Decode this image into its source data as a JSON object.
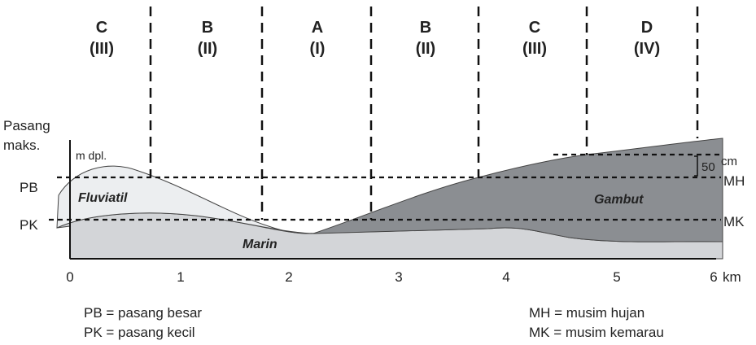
{
  "zones": [
    {
      "letter": "C",
      "roman": "(III)"
    },
    {
      "letter": "B",
      "roman": "(II)"
    },
    {
      "letter": "A",
      "roman": "(I)"
    },
    {
      "letter": "B",
      "roman": "(II)"
    },
    {
      "letter": "C",
      "roman": "(III)"
    },
    {
      "letter": "D",
      "roman": "(IV)"
    }
  ],
  "axis": {
    "y_title": [
      "Pasang",
      "maks."
    ],
    "y_unit": "m dpl.",
    "x_ticks": [
      "0",
      "1",
      "2",
      "3",
      "4",
      "5",
      "6"
    ],
    "x_unit": "km"
  },
  "levels": {
    "pb": "PB",
    "pk": "PK",
    "mh": "MH",
    "mk": "MK",
    "scale": "50",
    "scale_unit": "cm"
  },
  "layers": {
    "fluviatil": "Fluviatil",
    "marin": "Marin",
    "gambut": "Gambut"
  },
  "legend": {
    "pb": "PB = pasang besar",
    "pk": "PK = pasang kecil",
    "mh": "MH = musim hujan",
    "mk": "MK = musim kemarau"
  }
}
